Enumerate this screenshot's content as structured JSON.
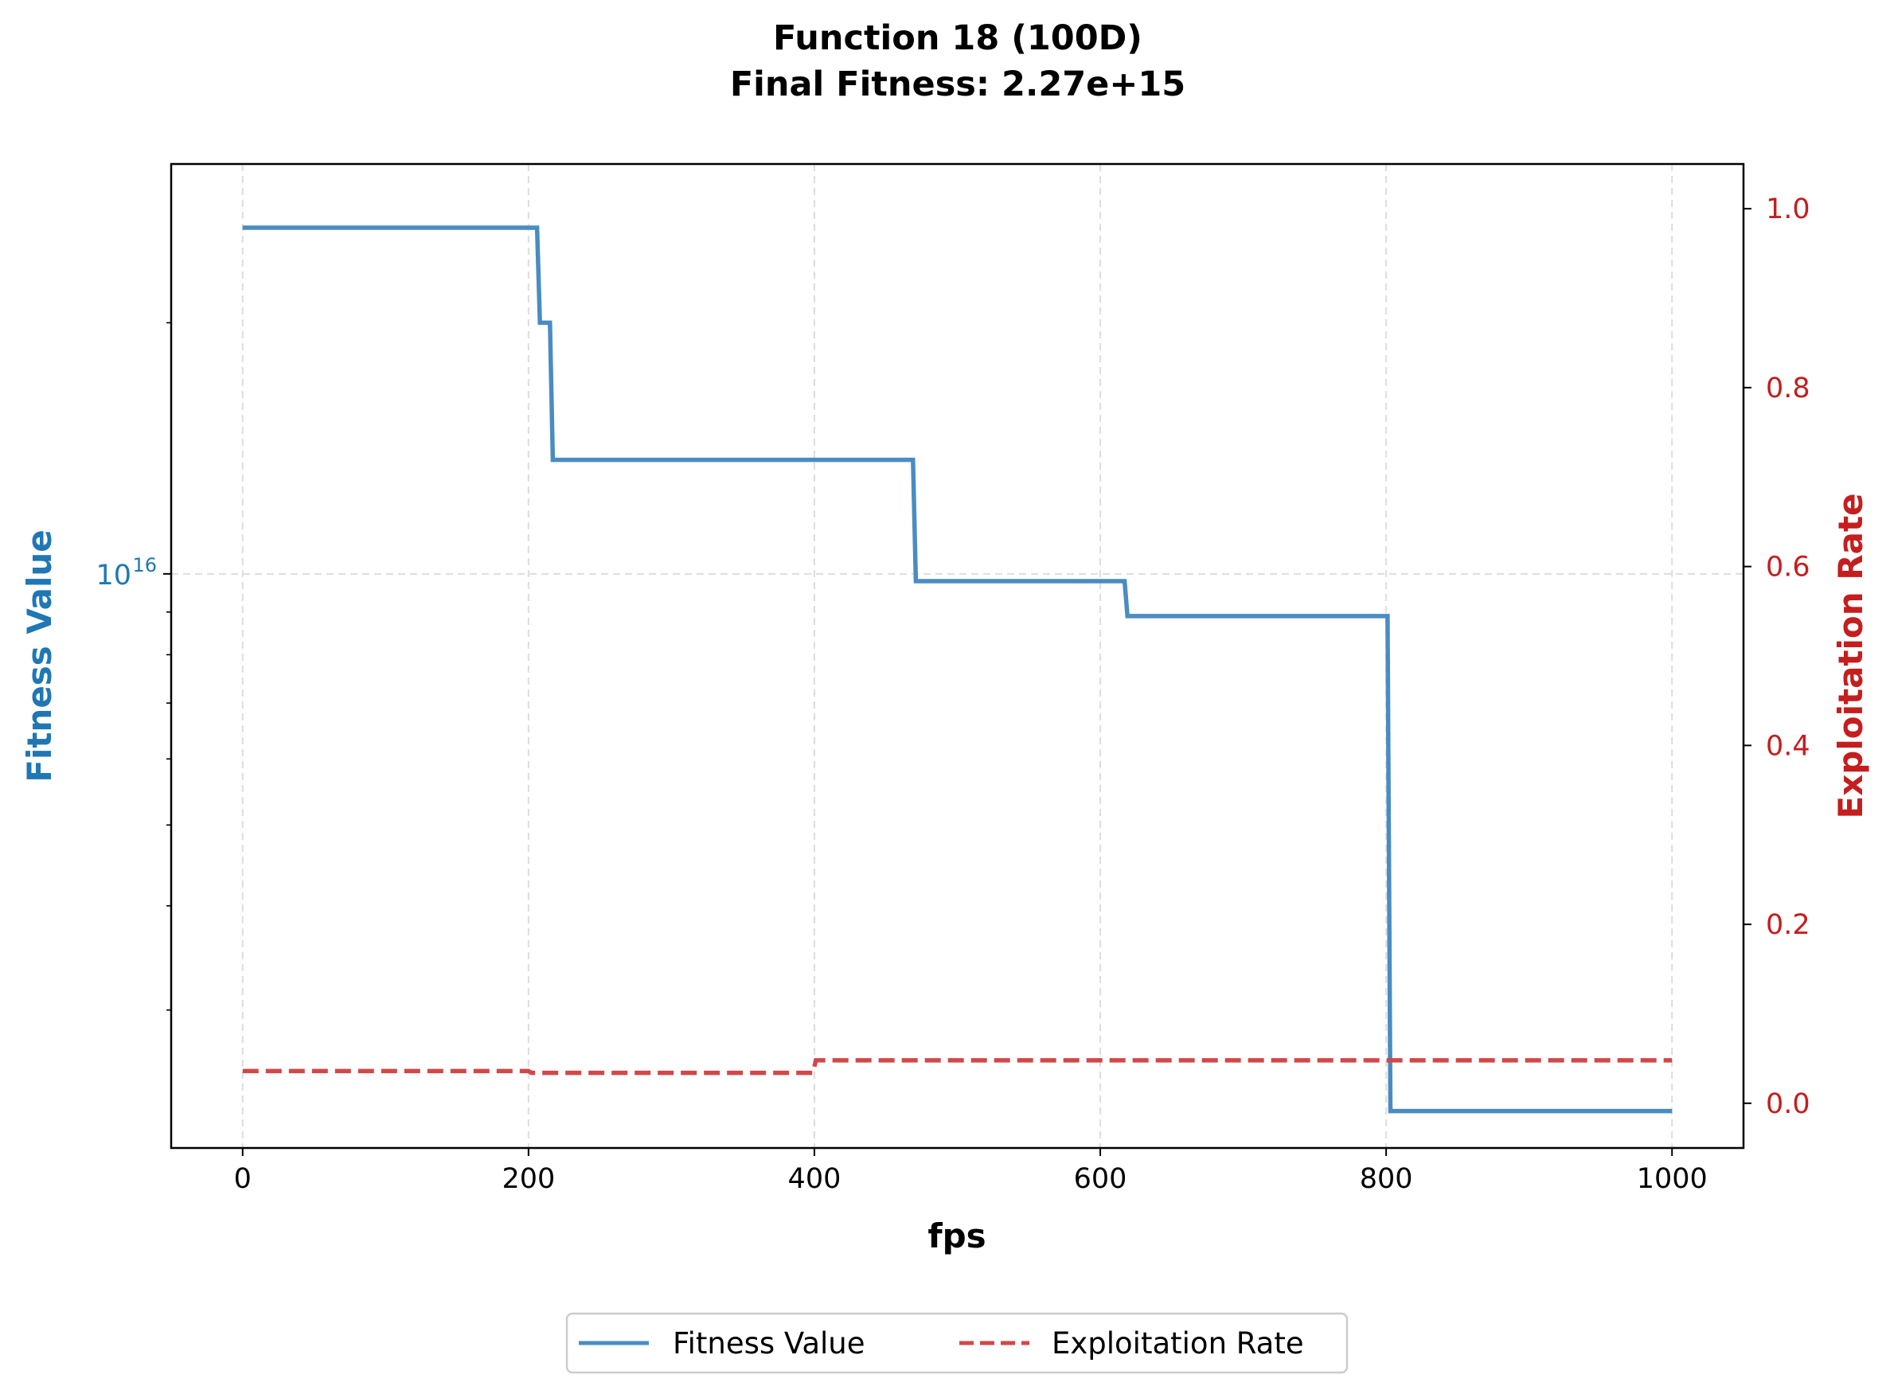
{
  "chart_data": {
    "type": "line",
    "title": "Function 18 (100D)",
    "subtitle": "Final Fitness: 2.27e+15",
    "xlabel": "fps",
    "y_left_label": "Fitness Value",
    "y_right_label": "Exploitation Rate",
    "xlim": [
      -50,
      1050
    ],
    "xticks": [
      0,
      200,
      400,
      600,
      800,
      1000
    ],
    "xtick_labels": [
      "0",
      "200",
      "400",
      "600",
      "800",
      "1000"
    ],
    "y_left_scale": "log",
    "y_left_lim": [
      2050000000000000.0,
      3.1e+16
    ],
    "y_left_major_ticks": [
      1e+16
    ],
    "y_left_major_tick_labels": [
      {
        "base": "10",
        "exp": "16"
      }
    ],
    "y_left_minor_ticks": [
      3000000000000000.0,
      4000000000000000.0,
      5000000000000000.0,
      6000000000000000.0,
      7000000000000000.0,
      8000000000000000.0,
      9000000000000000.0,
      2e+16
    ],
    "y_right_lim": [
      -0.05,
      1.05
    ],
    "y_right_ticks": [
      0,
      0.2,
      0.4,
      0.6,
      0.8,
      1.0
    ],
    "y_right_tick_labels": [
      "0.0",
      "0.2",
      "0.4",
      "0.6",
      "0.8",
      "1.0"
    ],
    "grid": true,
    "legend_position": "bottom-center, below plot",
    "series": [
      {
        "name": "Fitness Value",
        "axis": "left",
        "style": "solid",
        "color": "#4a8cc2",
        "x": [
          0,
          206,
          208,
          215,
          217,
          469,
          471,
          617,
          619,
          801,
          803,
          1000
        ],
        "y": [
          2.6e+16,
          2.6e+16,
          2e+16,
          2e+16,
          1.37e+16,
          1.37e+16,
          9800000000000000.0,
          9800000000000000.0,
          8900000000000000.0,
          8900000000000000.0,
          2270000000000000.0,
          2270000000000000.0
        ]
      },
      {
        "name": "Exploitation Rate",
        "axis": "right",
        "style": "dashed",
        "color": "#d04848",
        "x": [
          0,
          200,
          202,
          399,
          401,
          1000
        ],
        "y": [
          0.036,
          0.036,
          0.034,
          0.034,
          0.048,
          0.048
        ]
      }
    ]
  },
  "colors": {
    "left_axis": "#1f77b4",
    "right_axis": "#c41e1e",
    "grid": "#dddddd"
  }
}
